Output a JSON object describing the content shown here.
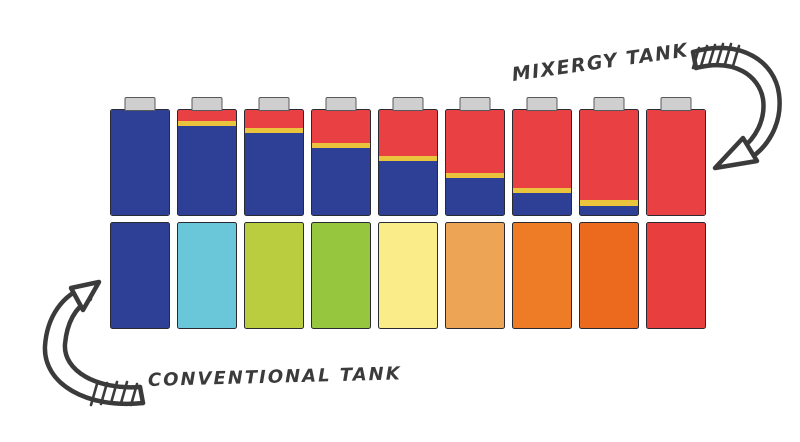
{
  "annotations": {
    "mixergy_label": "MIXERGY TANK",
    "conventional_label": "CONVENTIONAL TANK"
  },
  "colors": {
    "ink": "#3b3b3b",
    "hot_red": "#e84043",
    "cold_blue": "#2e4095",
    "stripe_yellow": "#eac43c",
    "cap_gray": "#cfcfcf",
    "cap_border": "#59595c",
    "tank_outline": "#2a2a33",
    "background": "#ffffff"
  },
  "chart_data": {
    "type": "diagram",
    "thermocline_stripe_pct": 5,
    "mixergy_row": {
      "label": "MIXERGY TANK",
      "tank_count": 9,
      "hot_fill_pct": [
        0,
        10,
        17,
        31,
        44,
        60,
        74,
        86,
        100
      ]
    },
    "conventional_row": {
      "label": "CONVENTIONAL TANK",
      "tank_count": 9,
      "tank_colors": [
        "#2e4095",
        "#6ac7d9",
        "#b9cd3e",
        "#96c63d",
        "#fbec8a",
        "#eda455",
        "#ee7c26",
        "#eb6a1e",
        "#e83e3e"
      ]
    }
  }
}
